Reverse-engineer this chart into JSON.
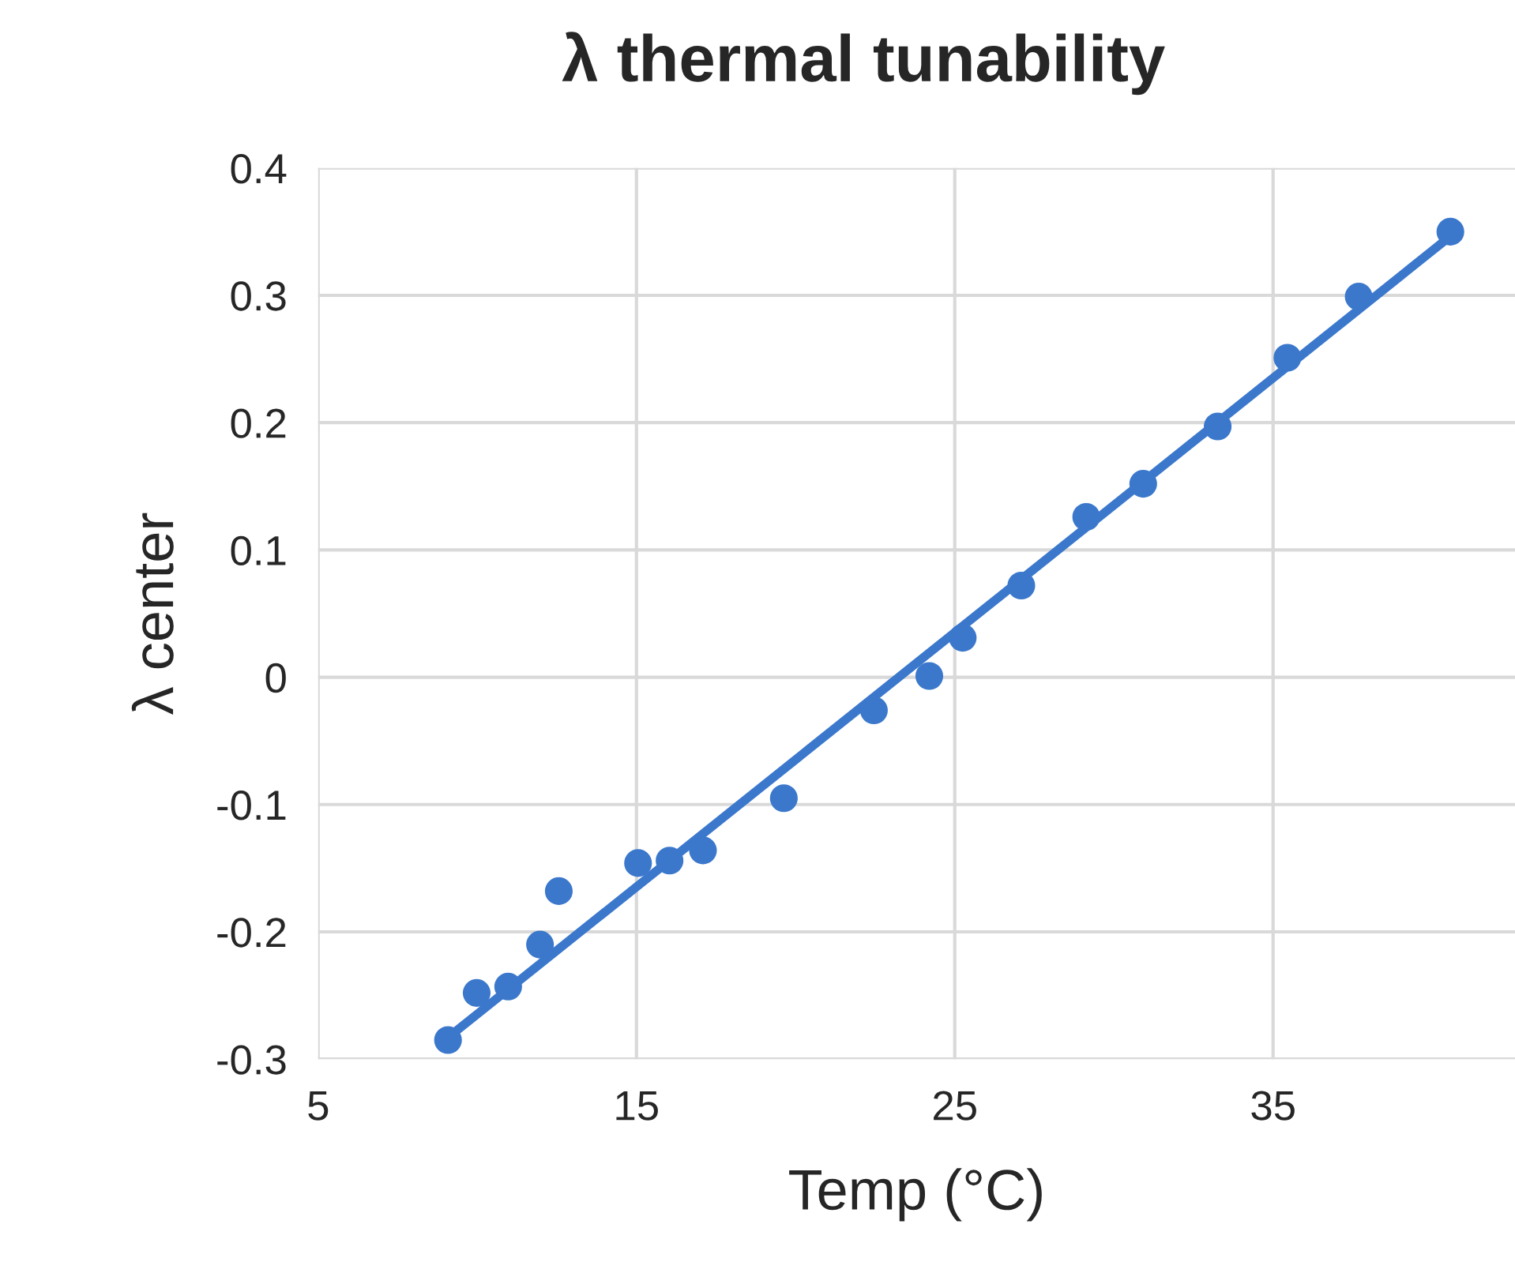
{
  "chart_data": {
    "type": "scatter",
    "title": "λ thermal tunability",
    "xlabel": "Temp (°C)",
    "ylabel": "λ center",
    "xlim": [
      5,
      42.6
    ],
    "xticks": [
      5,
      15,
      25,
      35
    ],
    "ylim": [
      -0.3,
      0.4
    ],
    "yticks": [
      -0.3,
      -0.2,
      -0.1,
      0,
      0.1,
      0.2,
      0.3,
      0.4
    ],
    "grid": true,
    "series": [
      {
        "marker": "circle",
        "color": "#3b78cc",
        "x": [
          9.08,
          9.98,
          10.97,
          11.97,
          12.56,
          15.05,
          16.04,
          17.09,
          19.63,
          22.46,
          24.2,
          25.25,
          27.09,
          29.13,
          30.92,
          33.26,
          35.45,
          37.69,
          40.57
        ],
        "values": [
          -0.285,
          -0.248,
          -0.243,
          -0.21,
          -0.168,
          -0.146,
          -0.144,
          -0.136,
          -0.095,
          -0.026,
          0.001,
          0.031,
          0.072,
          0.126,
          0.152,
          0.197,
          0.251,
          0.299,
          0.35
        ]
      },
      {
        "type": "line",
        "marker": "none",
        "color": "#3b78cc",
        "x": [
          9.03,
          40.5
        ],
        "values": [
          -0.284,
          0.345
        ]
      }
    ]
  }
}
